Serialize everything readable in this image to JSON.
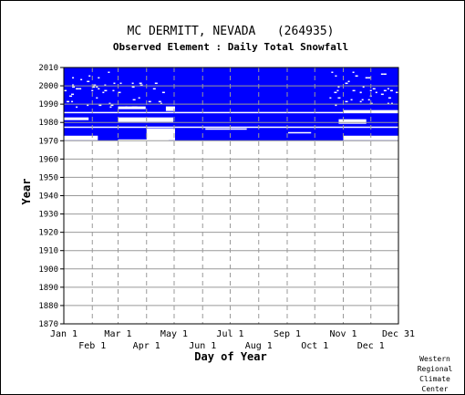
{
  "chart_data": {
    "type": "heatmap",
    "title": "MC DERMITT, NEVADA   (264935)",
    "subtitle": "Observed Element : Daily Total Snowfall",
    "xlabel": "Day of Year",
    "ylabel": "Year",
    "xlim": [
      1,
      365
    ],
    "ylim": [
      1870,
      2010
    ],
    "grid": true,
    "y_ticks": [
      1870,
      1880,
      1890,
      1900,
      1910,
      1920,
      1930,
      1940,
      1950,
      1960,
      1970,
      1980,
      1990,
      2000,
      2010
    ],
    "x_ticks_upper": [
      {
        "label": "Jan 1",
        "day": 1
      },
      {
        "label": "Mar 1",
        "day": 60
      },
      {
        "label": "May 1",
        "day": 121
      },
      {
        "label": "Jul 1",
        "day": 182
      },
      {
        "label": "Sep 1",
        "day": 244
      },
      {
        "label": "Nov 1",
        "day": 305
      },
      {
        "label": "Dec 31",
        "day": 365
      }
    ],
    "x_ticks_lower": [
      {
        "label": "Feb 1",
        "day": 32
      },
      {
        "label": "Apr 1",
        "day": 91
      },
      {
        "label": "Jun 1",
        "day": 152
      },
      {
        "label": "Aug 1",
        "day": 213
      },
      {
        "label": "Oct 1",
        "day": 274
      },
      {
        "label": "Dec 1",
        "day": 335
      }
    ],
    "record_color": "#0000ff",
    "data_coverage": {
      "observed_years": [
        1970,
        2009
      ],
      "observed_spans": [
        {
          "day_start": 1,
          "day_end": 365,
          "year_start": 1970,
          "year_end": 2009
        }
      ],
      "missing_spans": [
        {
          "day_start": 1,
          "day_end": 38,
          "year_start": 1970,
          "year_end": 1972
        },
        {
          "day_start": 60,
          "day_end": 115,
          "year_start": 1970,
          "year_end": 1970
        },
        {
          "day_start": 91,
          "day_end": 122,
          "year_start": 1970,
          "year_end": 1976
        },
        {
          "day_start": 1,
          "day_end": 365,
          "year_start": 1977,
          "year_end": 1977
        },
        {
          "day_start": 155,
          "day_end": 200,
          "year_start": 1976,
          "year_end": 1976
        },
        {
          "day_start": 245,
          "day_end": 270,
          "year_start": 1974,
          "year_end": 1974
        },
        {
          "day_start": 305,
          "day_end": 365,
          "year_start": 1970,
          "year_end": 1972
        },
        {
          "day_start": 1,
          "day_end": 28,
          "year_start": 1981,
          "year_end": 1982
        },
        {
          "day_start": 60,
          "day_end": 120,
          "year_start": 1980,
          "year_end": 1982
        },
        {
          "day_start": 300,
          "day_end": 330,
          "year_start": 1979,
          "year_end": 1981
        },
        {
          "day_start": 1,
          "day_end": 365,
          "year_start": 1985,
          "year_end": 1985
        },
        {
          "day_start": 60,
          "day_end": 90,
          "year_start": 1987,
          "year_end": 1988
        },
        {
          "day_start": 112,
          "day_end": 122,
          "year_start": 1986,
          "year_end": 1988
        },
        {
          "day_start": 305,
          "day_end": 365,
          "year_start": 1985,
          "year_end": 1986
        }
      ]
    }
  },
  "credit": {
    "lines": [
      "Western",
      "Regional",
      "Climate",
      "Center"
    ]
  },
  "colors": {
    "grid": "#999999",
    "axis": "#000000",
    "background": "#ffffff"
  }
}
